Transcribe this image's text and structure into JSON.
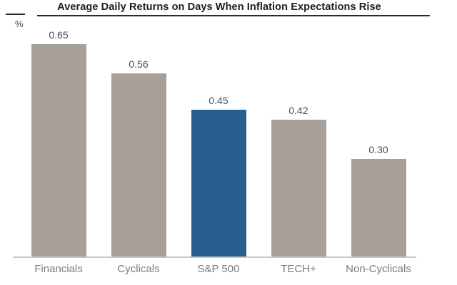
{
  "chart_data": {
    "type": "bar",
    "title": "Average Daily Returns on Days When Inflation Expectations Rise",
    "ylabel": "%",
    "xlabel": "",
    "categories": [
      "Financials",
      "Cyclicals",
      "S&P 500",
      "TECH+",
      "Non-Cyclicals"
    ],
    "values": [
      0.65,
      0.56,
      0.45,
      0.42,
      0.3
    ],
    "value_labels": [
      "0.65",
      "0.56",
      "0.45",
      "0.42",
      "0.30"
    ],
    "ylim": [
      0,
      0.7
    ],
    "grid": false,
    "legend": "none",
    "highlight_index": 2,
    "highlight_category": "S&P 500",
    "colors": {
      "bar_default": "#a7a099",
      "bar_highlight": "#27608e",
      "value_label_text": "#4e4e4e",
      "category_label_text": "#7e7a77",
      "unit_label_text": "#434343",
      "title_text": "#1d1d1d",
      "title_rule": "#2b2b2b",
      "baseline": "#c6c6c6",
      "background": "#ffffff"
    }
  }
}
